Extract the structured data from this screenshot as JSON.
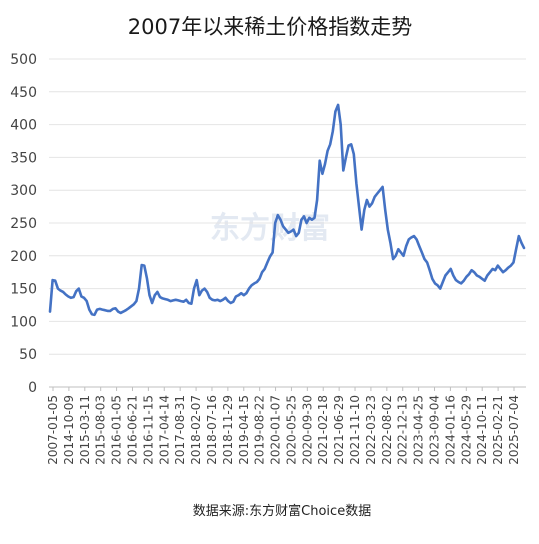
{
  "chart_data": {
    "type": "line",
    "title": "2007年以来稀土价格指数走势",
    "source": "数据来源:东方财富Choice数据",
    "watermark": "东方财富",
    "ylim": [
      0,
      500
    ],
    "yticks": [
      0,
      50,
      100,
      150,
      200,
      250,
      300,
      350,
      400,
      450,
      500
    ],
    "xlabels": [
      "2007-01-05",
      "2014-10-09",
      "2015-03-11",
      "2015-08-03",
      "2016-01-05",
      "2016-06-21",
      "2016-11-15",
      "2017-04-14",
      "2017-08-31",
      "2018-02-07",
      "2018-07-16",
      "2018-11-29",
      "2019-04-15",
      "2019-08-22",
      "2020-01-07",
      "2020-05-25",
      "2020-09-30",
      "2021-02-18",
      "2021-06-29",
      "2021-11-10",
      "2022-03-23",
      "2022-08-02",
      "2022-12-13",
      "2023-04-25",
      "2023-09-04",
      "2024-01-16",
      "2024-05-29",
      "2024-10-11",
      "2025-02-21",
      "2025-07-04"
    ],
    "grid": true,
    "colors": {
      "line": "#4472c4"
    },
    "series": [
      {
        "values": [
          115,
          163,
          162,
          150,
          147,
          145,
          141,
          138,
          136,
          137,
          146,
          150,
          138,
          136,
          131,
          118,
          111,
          110,
          118,
          119,
          118,
          117,
          116,
          116,
          119,
          120,
          115,
          113,
          115,
          117,
          120,
          123,
          126,
          131,
          150,
          186,
          185,
          166,
          140,
          128,
          140,
          145,
          137,
          135,
          134,
          133,
          131,
          132,
          133,
          132,
          131,
          130,
          133,
          128,
          127,
          150,
          163,
          140,
          147,
          150,
          145,
          136,
          133,
          132,
          133,
          131,
          133,
          136,
          131,
          128,
          130,
          138,
          140,
          143,
          140,
          143,
          150,
          155,
          158,
          160,
          165,
          175,
          180,
          190,
          199,
          205,
          250,
          262,
          255,
          245,
          240,
          235,
          237,
          240,
          230,
          235,
          255,
          260,
          250,
          258,
          255,
          258,
          285,
          345,
          325,
          340,
          360,
          370,
          390,
          420,
          430,
          400,
          330,
          350,
          368,
          370,
          355,
          310,
          275,
          240,
          270,
          285,
          275,
          280,
          290,
          295,
          300,
          305,
          270,
          240,
          220,
          195,
          200,
          210,
          205,
          200,
          215,
          225,
          228,
          230,
          225,
          215,
          205,
          195,
          190,
          178,
          165,
          158,
          155,
          150,
          160,
          170,
          175,
          180,
          170,
          163,
          160,
          158,
          162,
          168,
          172,
          178,
          175,
          170,
          168,
          165,
          162,
          170,
          175,
          180,
          178,
          185,
          180,
          175,
          178,
          182,
          185,
          190,
          210,
          230,
          220,
          212
        ]
      }
    ]
  }
}
